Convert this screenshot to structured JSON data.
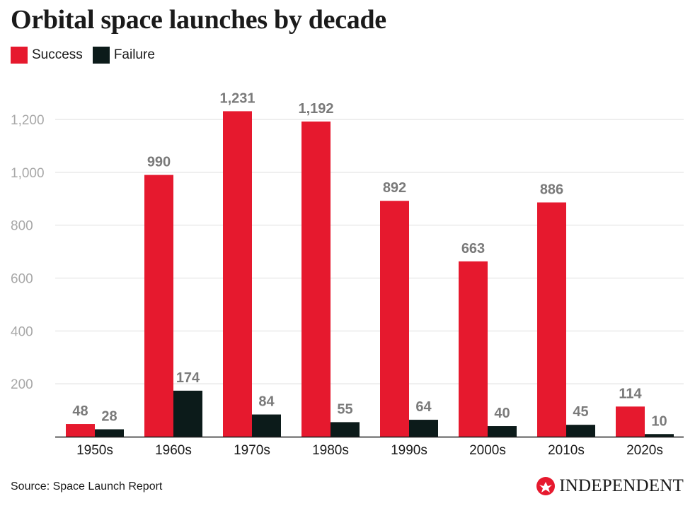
{
  "title": "Orbital space launches by decade",
  "source": "Source: Space Launch Report",
  "brand": {
    "name": "INDEPENDENT",
    "icon": "eagle-logo-icon",
    "color": "#e6192e"
  },
  "colors": {
    "success": "#e6192e",
    "failure": "#0c1b1a",
    "grid": "#dedede",
    "tick": "#a8a8a8",
    "value_label": "#7a7a7a"
  },
  "chart_data": {
    "type": "bar",
    "categories": [
      "1950s",
      "1960s",
      "1970s",
      "1980s",
      "1990s",
      "2000s",
      "2010s",
      "2020s"
    ],
    "series": [
      {
        "name": "Success",
        "values": [
          48,
          990,
          1231,
          1192,
          892,
          663,
          886,
          114
        ]
      },
      {
        "name": "Failure",
        "values": [
          28,
          174,
          84,
          55,
          64,
          40,
          45,
          10
        ]
      }
    ],
    "value_labels": [
      [
        "48",
        "990",
        "1,231",
        "1,192",
        "892",
        "663",
        "886",
        "114"
      ],
      [
        "28",
        "174",
        "84",
        "55",
        "64",
        "40",
        "45",
        "10"
      ]
    ],
    "yticks": [
      "200",
      "400",
      "600",
      "800",
      "1,000",
      "1,200"
    ],
    "ytick_values": [
      200,
      400,
      600,
      800,
      1000,
      1200
    ],
    "ylim": [
      0,
      1200
    ],
    "grid": true,
    "legend_position": "top-left",
    "xlabel": "",
    "ylabel": ""
  }
}
